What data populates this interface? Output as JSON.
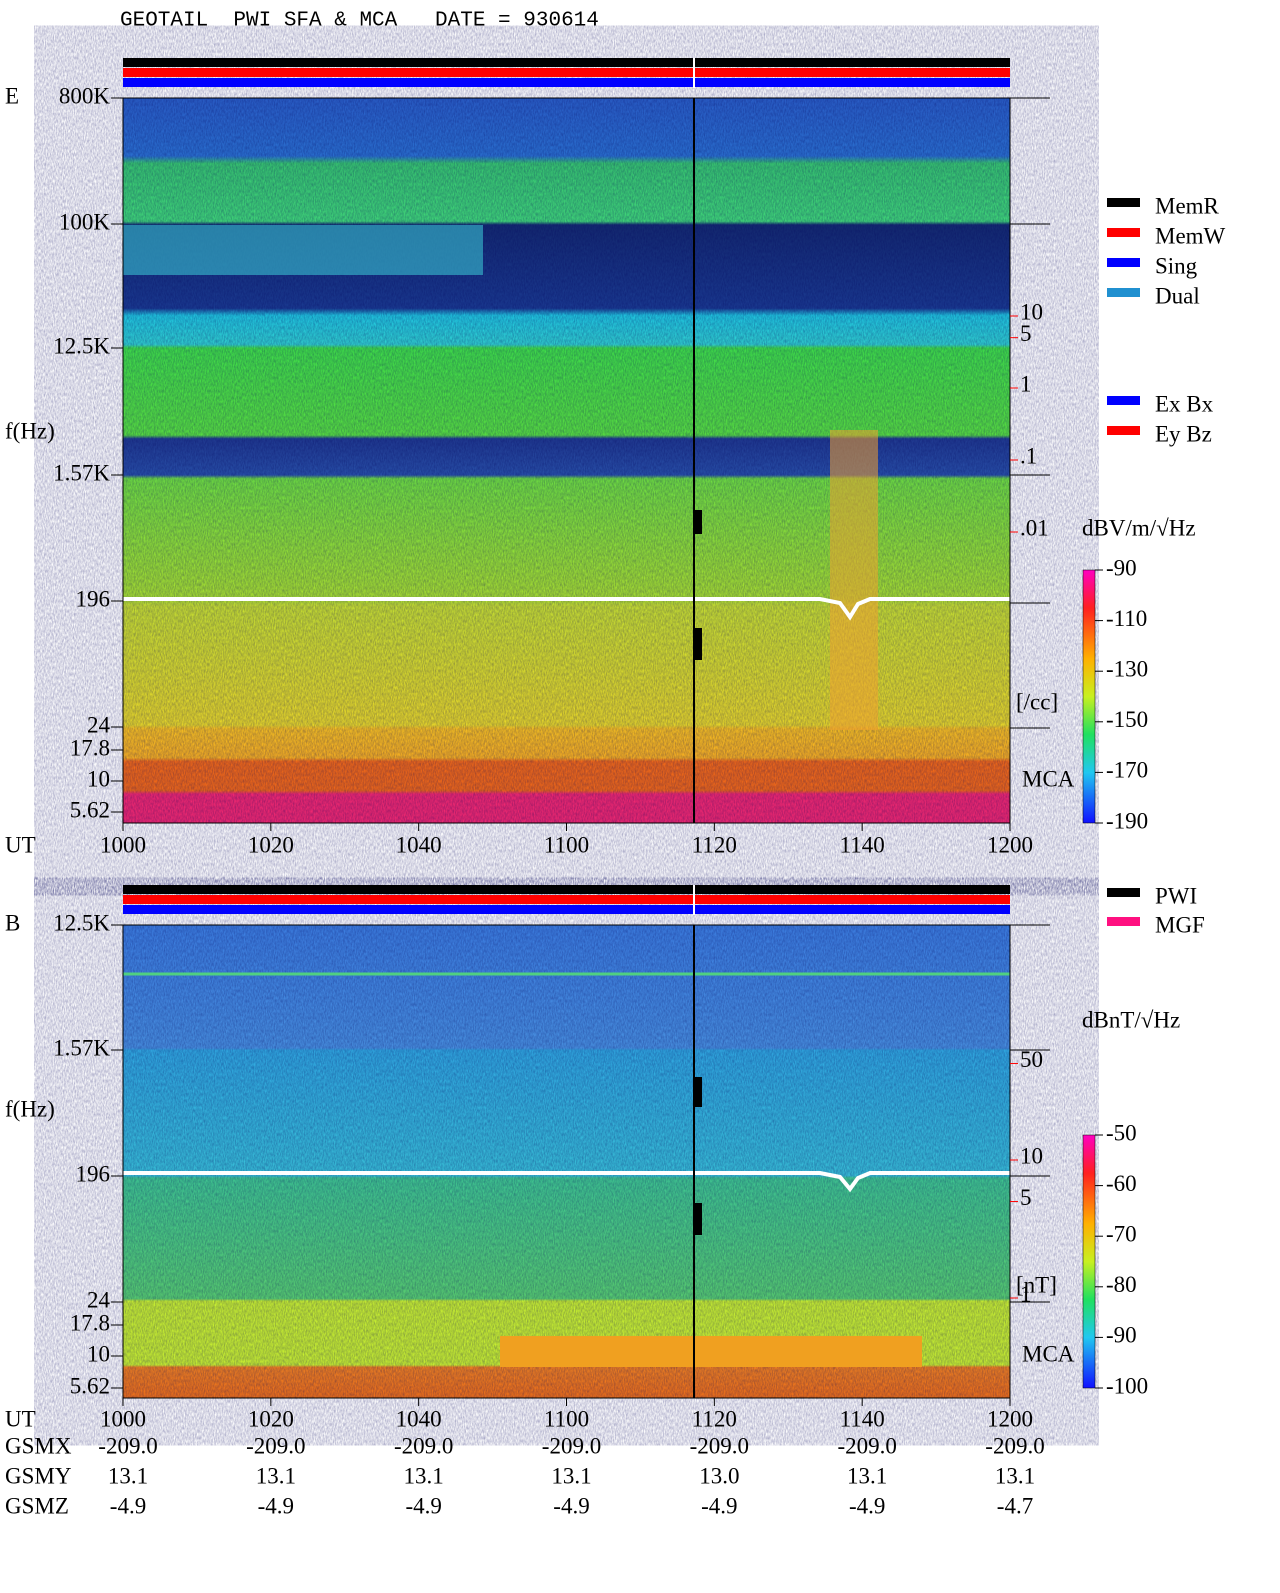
{
  "title": "GEOTAIL  PWI SFA & MCA   DATE = 930614",
  "panels": [
    {
      "label": "E",
      "y_label": "f(Hz)",
      "x_label": "UT",
      "freq_ticks": [
        "800K",
        "100K",
        "12.5K",
        "1.57K",
        "196",
        "24",
        "17.8",
        "10",
        "5.62"
      ],
      "time_ticks": [
        "1000",
        "1020",
        "1040",
        "1100",
        "1120",
        "1140",
        "1200"
      ],
      "legend": [
        {
          "name": "MemR",
          "color": "#000000"
        },
        {
          "name": "MemW",
          "color": "#ff0000"
        },
        {
          "name": "Sing",
          "color": "#0000ff"
        },
        {
          "name": "Dual",
          "color": "#2090d0"
        },
        {
          "name": "Ex Bx",
          "color": "#0000ff"
        },
        {
          "name": "Ey Bz",
          "color": "#ff0000"
        }
      ],
      "density_ticks": [
        10,
        5,
        1,
        {
          "value": 0.1,
          "label": ".1"
        },
        {
          "value": 0.01,
          "label": ".01"
        }
      ],
      "density_unit": "[/cc]",
      "mca": "MCA",
      "colorbar": {
        "unit": "dBV/m/√Hz",
        "lim": [
          -190,
          -90
        ],
        "ticks": [
          -90,
          -110,
          -130,
          -150,
          -170,
          -190
        ]
      }
    },
    {
      "label": "B",
      "y_label": "f(Hz)",
      "x_label": "UT",
      "freq_ticks": [
        "12.5K",
        "1.57K",
        "196",
        "24",
        "17.8",
        "10",
        "5.62"
      ],
      "time_ticks": [
        "1000",
        "1020",
        "1040",
        "1100",
        "1120",
        "1140",
        "1200"
      ],
      "legend": [
        {
          "name": "PWI",
          "color": "#000000"
        },
        {
          "name": "MGF",
          "color": "#ff1080"
        }
      ],
      "density_ticks": [
        50,
        10,
        5,
        1
      ],
      "density_unit": "[nT]",
      "mca": "MCA",
      "colorbar": {
        "unit": "dBnT/√Hz",
        "lim": [
          -100,
          -50
        ],
        "ticks": [
          -50,
          -60,
          -70,
          -80,
          -90,
          -100
        ]
      }
    }
  ],
  "orbit": {
    "rows": [
      {
        "name": "GSMX",
        "values": [
          "-209.0",
          "-209.0",
          "-209.0",
          "-209.0",
          "-209.0",
          "-209.0",
          "-209.0"
        ]
      },
      {
        "name": "GSMY",
        "values": [
          "13.1",
          "13.1",
          "13.1",
          "13.1",
          "13.0",
          "13.1",
          "13.1"
        ]
      },
      {
        "name": "GSMZ",
        "values": [
          "-4.9",
          "-4.9",
          "-4.9",
          "-4.9",
          "-4.9",
          "-4.9",
          "-4.7"
        ]
      }
    ]
  }
}
